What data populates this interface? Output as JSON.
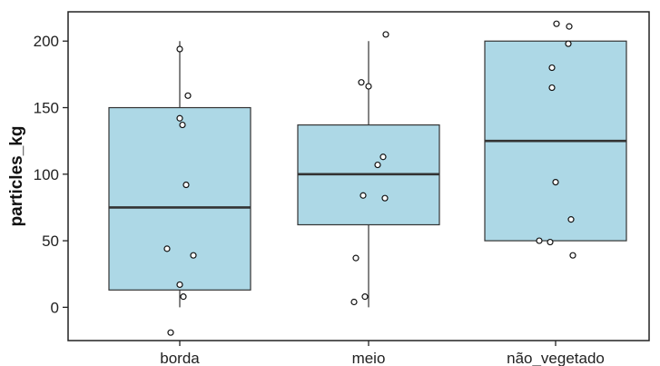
{
  "chart_data": {
    "type": "boxplot",
    "title": "",
    "xlabel": "",
    "ylabel": "particles_kg",
    "ylim": [
      -25,
      222
    ],
    "yticks": [
      0,
      50,
      100,
      150,
      200
    ],
    "grid": false,
    "legend": "none",
    "colors": {
      "box_fill": "#add8e6",
      "box_stroke": "#333333",
      "median": "#333333",
      "whisker": "#333333",
      "point_stroke": "#111111",
      "point_fill": "#ffffff"
    },
    "categories": [
      "borda",
      "meio",
      "não_vegetado"
    ],
    "boxes": [
      {
        "category": "borda",
        "q1": 13,
        "median": 75,
        "q3": 150,
        "whisker_low": 0,
        "whisker_high": 200
      },
      {
        "category": "meio",
        "q1": 62,
        "median": 100,
        "q3": 137,
        "whisker_low": 0,
        "whisker_high": 200
      },
      {
        "category": "não_vegetado",
        "q1": 50,
        "median": 125,
        "q3": 200,
        "whisker_low": 50,
        "whisker_high": 200
      }
    ],
    "points": [
      {
        "category": "borda",
        "values": [
          194,
          159,
          142,
          137,
          92,
          44,
          39,
          17,
          8,
          -19
        ]
      },
      {
        "category": "meio",
        "values": [
          205,
          169,
          166,
          113,
          107,
          84,
          82,
          37,
          8,
          4
        ]
      },
      {
        "category": "não_vegetado",
        "values": [
          213,
          211,
          198,
          180,
          165,
          94,
          66,
          50,
          49,
          39
        ]
      }
    ]
  }
}
